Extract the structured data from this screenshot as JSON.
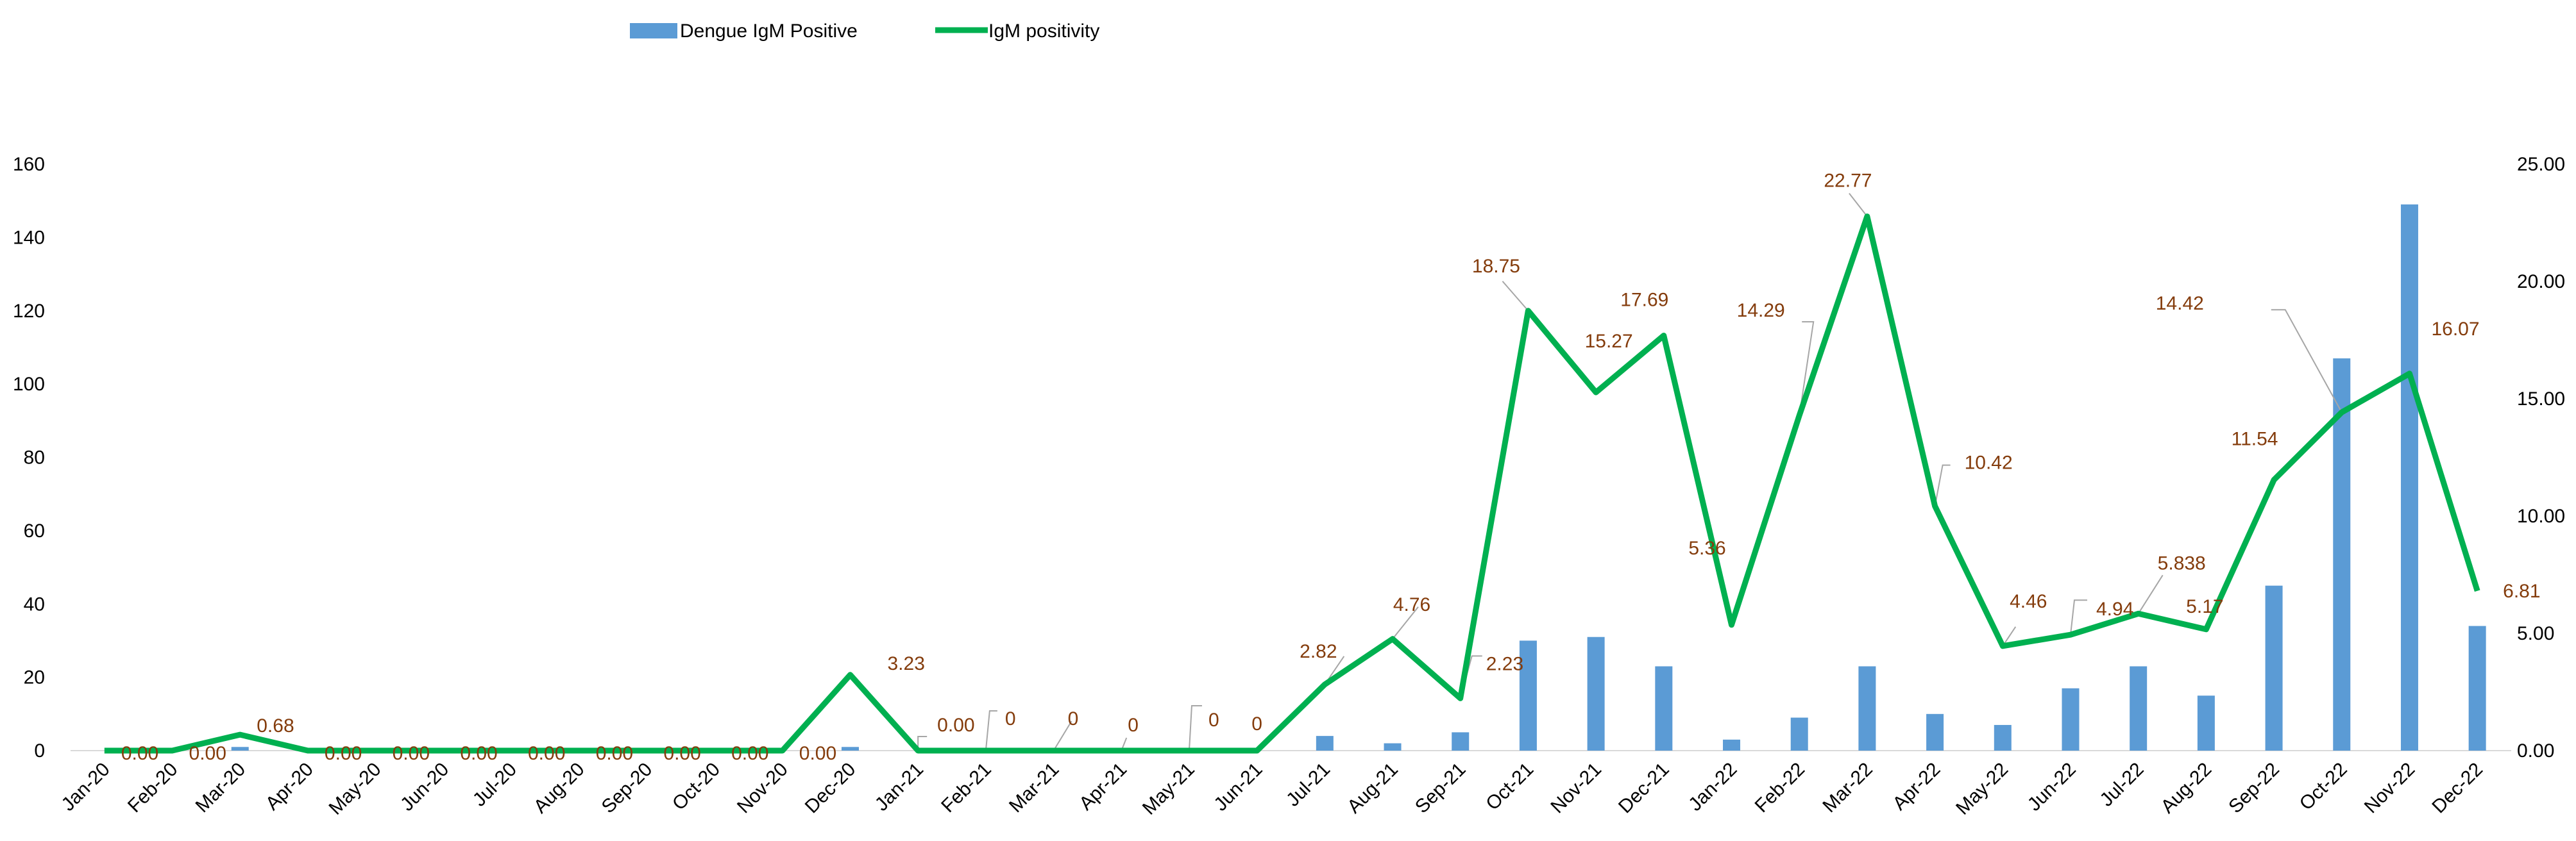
{
  "chart_data": {
    "type": "bar",
    "categories": [
      "Jan-20",
      "Feb-20",
      "Mar-20",
      "Apr-20",
      "May-20",
      "Jun-20",
      "Jul-20",
      "Aug-20",
      "Sep-20",
      "Oct-20",
      "Nov-20",
      "Dec-20",
      "Jan-21",
      "Feb-21",
      "Mar-21",
      "Apr-21",
      "May-21",
      "Jun-21",
      "Jul-21",
      "Aug-21",
      "Sep-21",
      "Oct-21",
      "Nov-21",
      "Dec-21",
      "Jan-22",
      "Feb-22",
      "Mar-22",
      "Apr-22",
      "May-22",
      "Jun-22",
      "Jul-22",
      "Aug-22",
      "Sep-22",
      "Oct-22",
      "Nov-22",
      "Dec-22"
    ],
    "series": [
      {
        "name": "Dengue IgM Positive",
        "type": "bar",
        "axis": "left",
        "color": "#5B9BD5",
        "values": [
          0,
          0,
          1,
          0,
          0,
          0,
          0,
          0,
          0,
          0,
          0,
          1,
          0,
          0,
          0,
          0,
          0,
          0,
          4,
          2,
          5,
          30,
          31,
          23,
          3,
          9,
          23,
          10,
          7,
          17,
          23,
          15,
          45,
          107,
          149,
          34
        ]
      },
      {
        "name": "IgM positivity",
        "type": "line",
        "axis": "right",
        "color": "#00B050",
        "values": [
          0,
          0,
          0.68,
          0,
          0,
          0,
          0,
          0,
          0,
          0,
          0,
          3.23,
          0,
          0,
          0,
          0,
          0,
          0,
          2.82,
          4.76,
          2.23,
          18.75,
          15.27,
          17.69,
          5.36,
          14.29,
          22.77,
          10.42,
          4.46,
          4.94,
          5.838,
          5.17,
          11.54,
          14.42,
          16.07,
          6.81
        ],
        "labels": [
          "0.00",
          "0.00",
          "0.68",
          "0.00",
          "0.00",
          "0.00",
          "0.00",
          "0.00",
          "0.00",
          "0.00",
          "0.00",
          "3.23",
          "0.00",
          "0",
          "0",
          "0",
          "0",
          "0",
          "2.82",
          "4.76",
          "2.23",
          "18.75",
          "15.27",
          "17.69",
          "5.36",
          "14.29",
          "22.77",
          "10.42",
          "4.46",
          "4.94",
          "5.838",
          "5.17",
          "11.54",
          "14.42",
          "16.07",
          "6.81"
        ],
        "label_color": "#843C0C"
      }
    ],
    "y_left": {
      "ylim": [
        0,
        160
      ],
      "ticks": [
        "0",
        "20",
        "40",
        "60",
        "80",
        "100",
        "120",
        "140",
        "160"
      ]
    },
    "y_right": {
      "ylim": [
        0,
        25
      ],
      "ticks": [
        "0.00",
        "5.00",
        "10.00",
        "15.00",
        "20.00",
        "25.00"
      ]
    },
    "legend_placement": "top",
    "grid": false,
    "title": "",
    "xlabel": "",
    "ylabel": ""
  }
}
